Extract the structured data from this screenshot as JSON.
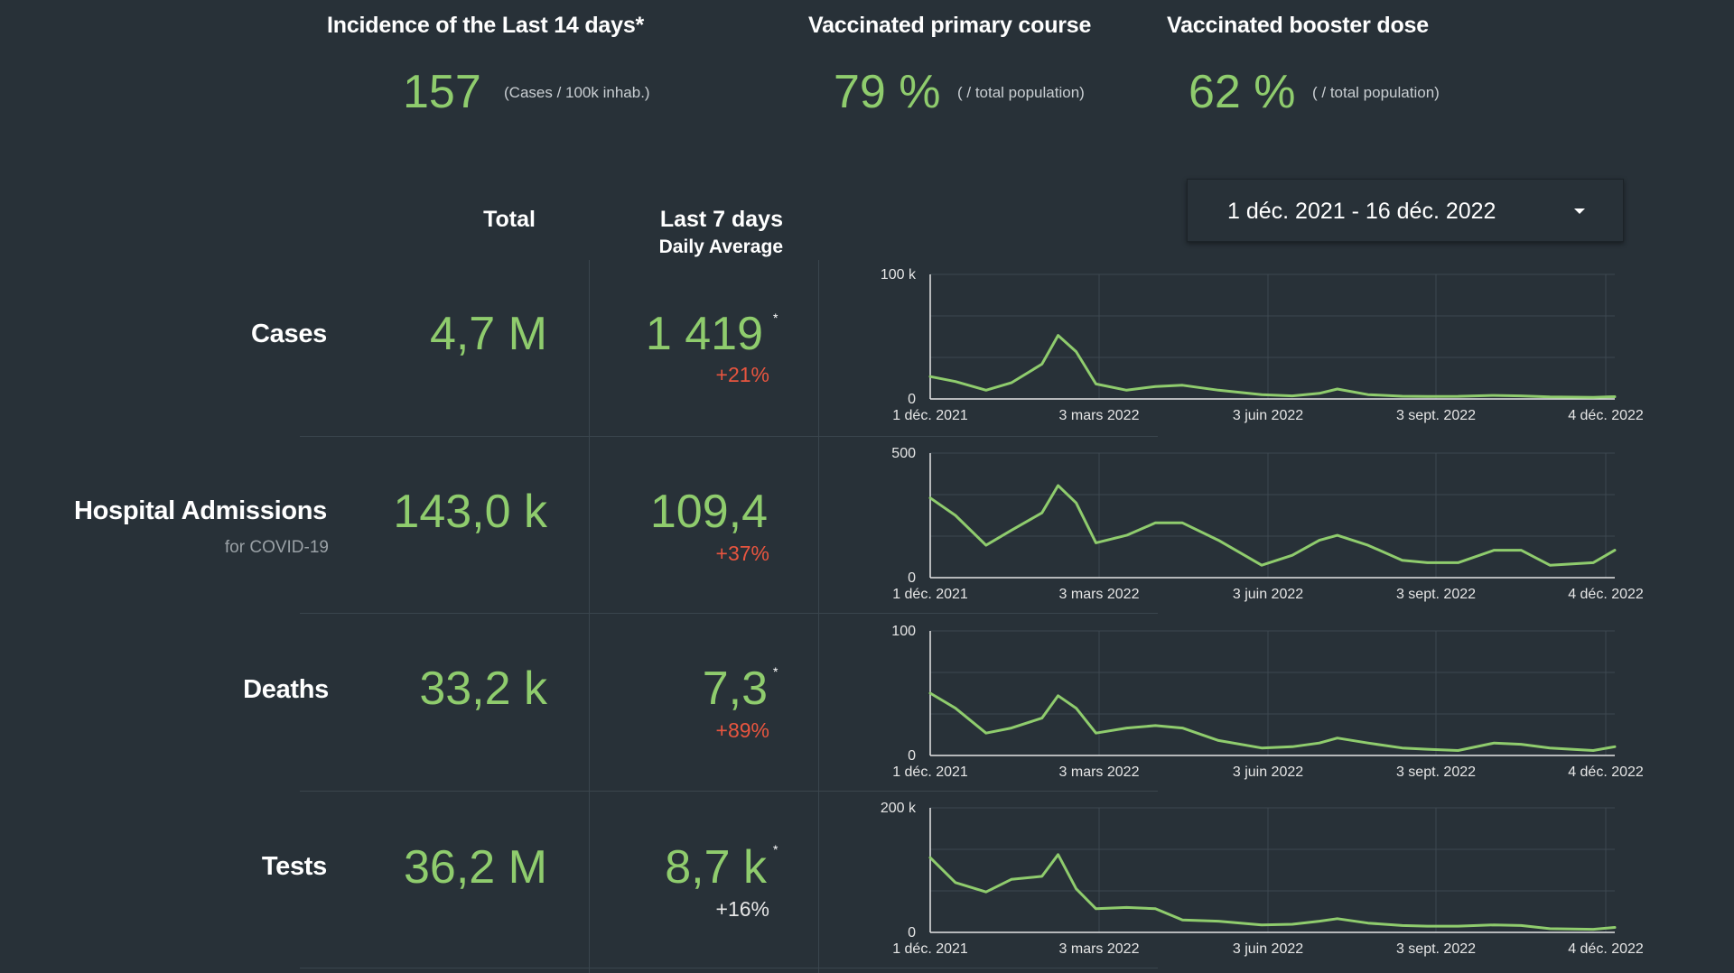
{
  "kpis": [
    {
      "title": "Incidence of the Last 14 days*",
      "value": "157",
      "unit": "(Cases / 100k inhab.)"
    },
    {
      "title": "Vaccinated primary course",
      "value": "79 %",
      "unit": "( / total population)"
    },
    {
      "title": "Vaccinated booster dose",
      "value": "62 %",
      "unit": "( / total population)"
    }
  ],
  "table": {
    "col_total": "Total",
    "col_last7": "Last 7 days",
    "col_last7_sub": "Daily Average",
    "asterisk": "*"
  },
  "date_range": {
    "label": "1 déc. 2021 - 16 déc. 2022"
  },
  "rows": [
    {
      "label": "Cases",
      "sublabel": "",
      "total": "4,7 M",
      "avg": "1 419",
      "change": "+21%"
    },
    {
      "label": "Hospital Admissions",
      "sublabel": "for COVID-19",
      "total": "143,0 k",
      "avg": "109,4",
      "change": "+37%"
    },
    {
      "label": "Deaths",
      "sublabel": "",
      "total": "33,2 k",
      "avg": "7,3",
      "change": "+89%"
    },
    {
      "label": "Tests",
      "sublabel": "",
      "total": "36,2 M",
      "avg": "8,7 k",
      "change": "+16%"
    }
  ],
  "colors": {
    "accent_green": "#8fcc6d",
    "increase_red": "#e8553f",
    "neutral_change": "#e6e6e6",
    "background": "#283138"
  },
  "chart_data": [
    {
      "type": "line",
      "title": "",
      "xlabel": "",
      "ylabel": "",
      "ylim": [
        0,
        100000
      ],
      "y_tick_labels": [
        "0",
        "100 k"
      ],
      "x_tick_labels": [
        "1 déc. 2021",
        "3 mars 2022",
        "3 juin 2022",
        "3 sept. 2022",
        "4 déc. 2022"
      ],
      "x": [
        "2021-12-01",
        "2021-12-15",
        "2022-01-01",
        "2022-01-15",
        "2022-02-01",
        "2022-02-10",
        "2022-02-20",
        "2022-03-03",
        "2022-03-20",
        "2022-04-05",
        "2022-04-20",
        "2022-05-10",
        "2022-06-03",
        "2022-06-20",
        "2022-07-05",
        "2022-07-15",
        "2022-08-01",
        "2022-08-20",
        "2022-09-03",
        "2022-09-20",
        "2022-10-10",
        "2022-10-25",
        "2022-11-10",
        "2022-12-04",
        "2022-12-16"
      ],
      "values": [
        18000,
        14000,
        7000,
        13000,
        28000,
        51000,
        38000,
        12000,
        7000,
        10000,
        11000,
        7000,
        3500,
        2500,
        4500,
        8000,
        3500,
        2200,
        2000,
        2100,
        2800,
        2500,
        1600,
        1300,
        1800
      ]
    },
    {
      "type": "line",
      "title": "",
      "xlabel": "",
      "ylabel": "",
      "ylim": [
        0,
        500
      ],
      "y_tick_labels": [
        "0",
        "500"
      ],
      "x_tick_labels": [
        "1 déc. 2021",
        "3 mars 2022",
        "3 juin 2022",
        "3 sept. 2022",
        "4 déc. 2022"
      ],
      "x": [
        "2021-12-01",
        "2021-12-15",
        "2022-01-01",
        "2022-01-15",
        "2022-02-01",
        "2022-02-10",
        "2022-02-20",
        "2022-03-03",
        "2022-03-20",
        "2022-04-05",
        "2022-04-20",
        "2022-05-10",
        "2022-06-03",
        "2022-06-20",
        "2022-07-05",
        "2022-07-15",
        "2022-08-01",
        "2022-08-20",
        "2022-09-03",
        "2022-09-20",
        "2022-10-10",
        "2022-10-25",
        "2022-11-10",
        "2022-12-04",
        "2022-12-16"
      ],
      "values": [
        320,
        250,
        130,
        190,
        260,
        370,
        300,
        140,
        170,
        220,
        220,
        150,
        50,
        90,
        150,
        170,
        130,
        70,
        60,
        60,
        110,
        110,
        50,
        60,
        110
      ]
    },
    {
      "type": "line",
      "title": "",
      "xlabel": "",
      "ylabel": "",
      "ylim": [
        0,
        100
      ],
      "y_tick_labels": [
        "0",
        "100"
      ],
      "x_tick_labels": [
        "1 déc. 2021",
        "3 mars 2022",
        "3 juin 2022",
        "3 sept. 2022",
        "4 déc. 2022"
      ],
      "x": [
        "2021-12-01",
        "2021-12-15",
        "2022-01-01",
        "2022-01-15",
        "2022-02-01",
        "2022-02-10",
        "2022-02-20",
        "2022-03-03",
        "2022-03-20",
        "2022-04-05",
        "2022-04-20",
        "2022-05-10",
        "2022-06-03",
        "2022-06-20",
        "2022-07-05",
        "2022-07-15",
        "2022-08-01",
        "2022-08-20",
        "2022-09-03",
        "2022-09-20",
        "2022-10-10",
        "2022-10-25",
        "2022-11-10",
        "2022-12-04",
        "2022-12-16"
      ],
      "values": [
        50,
        38,
        18,
        22,
        30,
        48,
        38,
        18,
        22,
        24,
        22,
        12,
        6,
        7,
        10,
        14,
        10,
        6,
        5,
        4,
        10,
        9,
        6,
        4,
        7
      ]
    },
    {
      "type": "line",
      "title": "",
      "xlabel": "",
      "ylabel": "",
      "ylim": [
        0,
        200000
      ],
      "y_tick_labels": [
        "0",
        "200 k"
      ],
      "x_tick_labels": [
        "1 déc. 2021",
        "3 mars 2022",
        "3 juin 2022",
        "3 sept. 2022",
        "4 déc. 2022"
      ],
      "x": [
        "2021-12-01",
        "2021-12-15",
        "2022-01-01",
        "2022-01-15",
        "2022-02-01",
        "2022-02-10",
        "2022-02-20",
        "2022-03-03",
        "2022-03-20",
        "2022-04-05",
        "2022-04-20",
        "2022-05-10",
        "2022-06-03",
        "2022-06-20",
        "2022-07-05",
        "2022-07-15",
        "2022-08-01",
        "2022-08-20",
        "2022-09-03",
        "2022-09-20",
        "2022-10-10",
        "2022-10-25",
        "2022-11-10",
        "2022-12-04",
        "2022-12-16"
      ],
      "values": [
        120000,
        80000,
        65000,
        85000,
        90000,
        125000,
        70000,
        38000,
        40000,
        38000,
        20000,
        18000,
        12000,
        13000,
        18000,
        22000,
        15000,
        11000,
        10000,
        10000,
        12000,
        11000,
        6000,
        5000,
        8000
      ]
    }
  ]
}
